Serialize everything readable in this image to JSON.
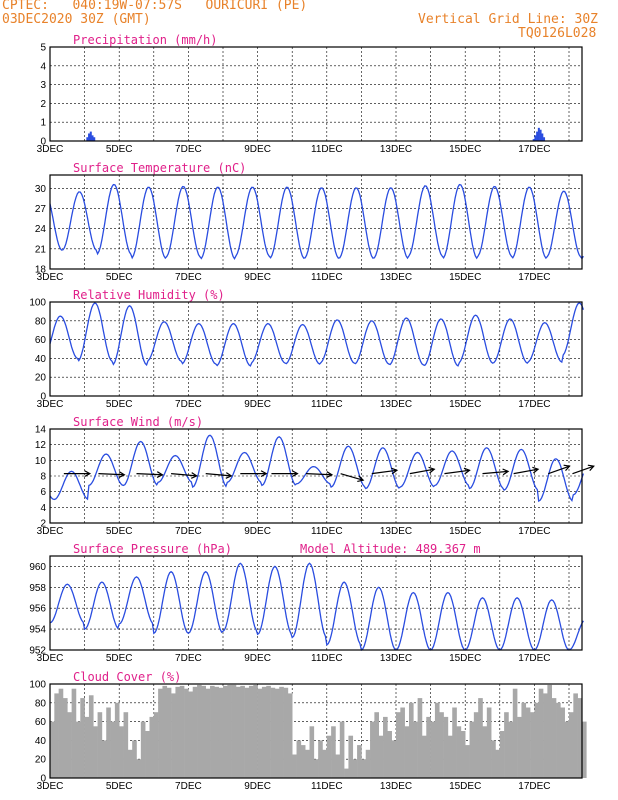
{
  "header": {
    "station": "CPTEC:   040:19W-07:57S   OURICURI (PE)",
    "run": "03DEC2020 30Z (GMT)",
    "grid_note": "Vertical Grid Line: 30Z",
    "code": "TQ0126L028"
  },
  "colors": {
    "line": "#2a4de0",
    "bar": "#2a4de0",
    "cloud": "#a8a8a8",
    "title": "#e0208a",
    "header": "#e8822a"
  },
  "x_tick_labels": [
    "3DEC",
    "5DEC",
    "7DEC",
    "9DEC",
    "11DEC",
    "13DEC",
    "15DEC",
    "17DEC"
  ],
  "chart_data": [
    {
      "type": "bar",
      "title": "Precipitation (mm/h)",
      "ylim": [
        0,
        5
      ],
      "yticks": [
        0,
        1,
        2,
        3,
        4,
        5
      ],
      "x_range_days": [
        0,
        15.4
      ],
      "bars": [
        [
          1.05,
          0.2
        ],
        [
          1.1,
          0.4
        ],
        [
          1.15,
          0.5
        ],
        [
          1.2,
          0.3
        ],
        [
          1.25,
          0.2
        ],
        [
          13.95,
          0.1
        ],
        [
          14.0,
          0.3
        ],
        [
          14.05,
          0.5
        ],
        [
          14.1,
          0.7
        ],
        [
          14.15,
          0.6
        ],
        [
          14.2,
          0.4
        ],
        [
          14.25,
          0.2
        ]
      ]
    },
    {
      "type": "line",
      "title": "Surface Temperature (nC)",
      "ylim": [
        18,
        32
      ],
      "yticks": [
        18,
        21,
        24,
        27,
        30
      ],
      "x_range_days": [
        0,
        15.4
      ],
      "phase_max": 0.85,
      "maxima": [
        29.5,
        30.6,
        30.2,
        30.3,
        30.2,
        30.2,
        30.2,
        30.1,
        30.1,
        30.1,
        30.4,
        30.6,
        30.3,
        30.2,
        29.6,
        28.8
      ],
      "minima": [
        20.8,
        20.2,
        19.6,
        19.8,
        19.5,
        19.9,
        19.6,
        19.6,
        19.6,
        19.6,
        19.9,
        19.6,
        19.9,
        19.6,
        19.8,
        19.5
      ]
    },
    {
      "type": "line",
      "title": "Relative Humidity (%)",
      "ylim": [
        0,
        100
      ],
      "yticks": [
        0,
        20,
        40,
        60,
        80,
        100
      ],
      "x_range_days": [
        0,
        15.4
      ],
      "phase_max": 0.3,
      "maxima": [
        85,
        99,
        96,
        79,
        77,
        77,
        77,
        76,
        81,
        80,
        83,
        82,
        86,
        82,
        78,
        99
      ],
      "minima": [
        40,
        37,
        33,
        37,
        34,
        32,
        35,
        34,
        35,
        34,
        33,
        32,
        35,
        35,
        36,
        43
      ]
    },
    {
      "type": "line",
      "title": "Surface Wind (m/s)",
      "ylim": [
        2,
        14
      ],
      "yticks": [
        2,
        4,
        6,
        8,
        10,
        12,
        14
      ],
      "x_range_days": [
        0,
        15.4
      ],
      "phase_max": 0.62,
      "maxima": [
        8.6,
        10.8,
        12.4,
        10.6,
        13.2,
        11.0,
        13.0,
        9.2,
        11.8,
        11.6,
        11.0,
        11.2,
        11.6,
        11.4,
        10.2,
        9.8
      ],
      "minima": [
        5.0,
        6.8,
        6.8,
        7.2,
        6.6,
        7.2,
        6.8,
        7.0,
        6.6,
        6.4,
        6.6,
        6.8,
        6.4,
        6.2,
        4.8,
        5.6
      ],
      "vectors": [
        [
          0.4,
          270
        ],
        [
          1.4,
          275
        ],
        [
          2.5,
          275
        ],
        [
          3.5,
          280
        ],
        [
          4.5,
          280
        ],
        [
          5.5,
          270
        ],
        [
          6.4,
          270
        ],
        [
          7.4,
          275
        ],
        [
          8.4,
          300
        ],
        [
          9.3,
          255
        ],
        [
          10.4,
          250
        ],
        [
          11.4,
          255
        ],
        [
          12.5,
          260
        ],
        [
          13.4,
          250
        ],
        [
          14.4,
          235
        ],
        [
          15.1,
          235
        ]
      ]
    },
    {
      "type": "line",
      "title": "Surface Pressure (hPa)",
      "subtitle": "Model Altitude: 489.367 m",
      "ylim": [
        952,
        961
      ],
      "yticks": [
        952,
        954,
        956,
        958,
        960
      ],
      "x_range_days": [
        0,
        15.4
      ],
      "phase_max": 0.5,
      "maxima": [
        958.3,
        958.5,
        959.0,
        959.5,
        959.5,
        960.3,
        960.0,
        960.3,
        958.5,
        958.0,
        957.5,
        957.5,
        957.0,
        957.0,
        956.8,
        955.0
      ],
      "minima": [
        954.6,
        954.0,
        954.5,
        953.6,
        953.6,
        953.8,
        953.5,
        953.2,
        952.5,
        952.0,
        952.0,
        952.0,
        952.0,
        952.0,
        952.0,
        952.0
      ]
    },
    {
      "type": "bar",
      "title": "Cloud Cover (%)",
      "ylim": [
        0,
        100
      ],
      "yticks": [
        0,
        20,
        40,
        60,
        80,
        100
      ],
      "x_range_days": [
        0,
        15.4
      ],
      "bars_by_day": [
        [
          60,
          90,
          95,
          85,
          70,
          95,
          60,
          85
        ],
        [
          65,
          88,
          55,
          70,
          40,
          75,
          60,
          80
        ],
        [
          55,
          70,
          30,
          40,
          20,
          60,
          50,
          65
        ],
        [
          70,
          95,
          98,
          96,
          90,
          97,
          98,
          95
        ],
        [
          92,
          97,
          99,
          98,
          95,
          98,
          97,
          96
        ],
        [
          98,
          99,
          99,
          97,
          98,
          96,
          98,
          99
        ],
        [
          95,
          97,
          98,
          96,
          95,
          97,
          96,
          90
        ],
        [
          25,
          40,
          35,
          30,
          55,
          20,
          40,
          30
        ],
        [
          45,
          55,
          25,
          60,
          10,
          45,
          20,
          35
        ],
        [
          20,
          30,
          60,
          70,
          45,
          65,
          50,
          40
        ],
        [
          70,
          75,
          55,
          80,
          60,
          85,
          45,
          65
        ],
        [
          60,
          80,
          70,
          65,
          45,
          75,
          55,
          50
        ],
        [
          35,
          60,
          70,
          85,
          55,
          75,
          40,
          30
        ],
        [
          50,
          70,
          60,
          95,
          65,
          80,
          75,
          70
        ],
        [
          80,
          95,
          90,
          99,
          85,
          80,
          75,
          60
        ],
        [
          70,
          90,
          85,
          60,
          40,
          30,
          20,
          10
        ]
      ]
    }
  ]
}
